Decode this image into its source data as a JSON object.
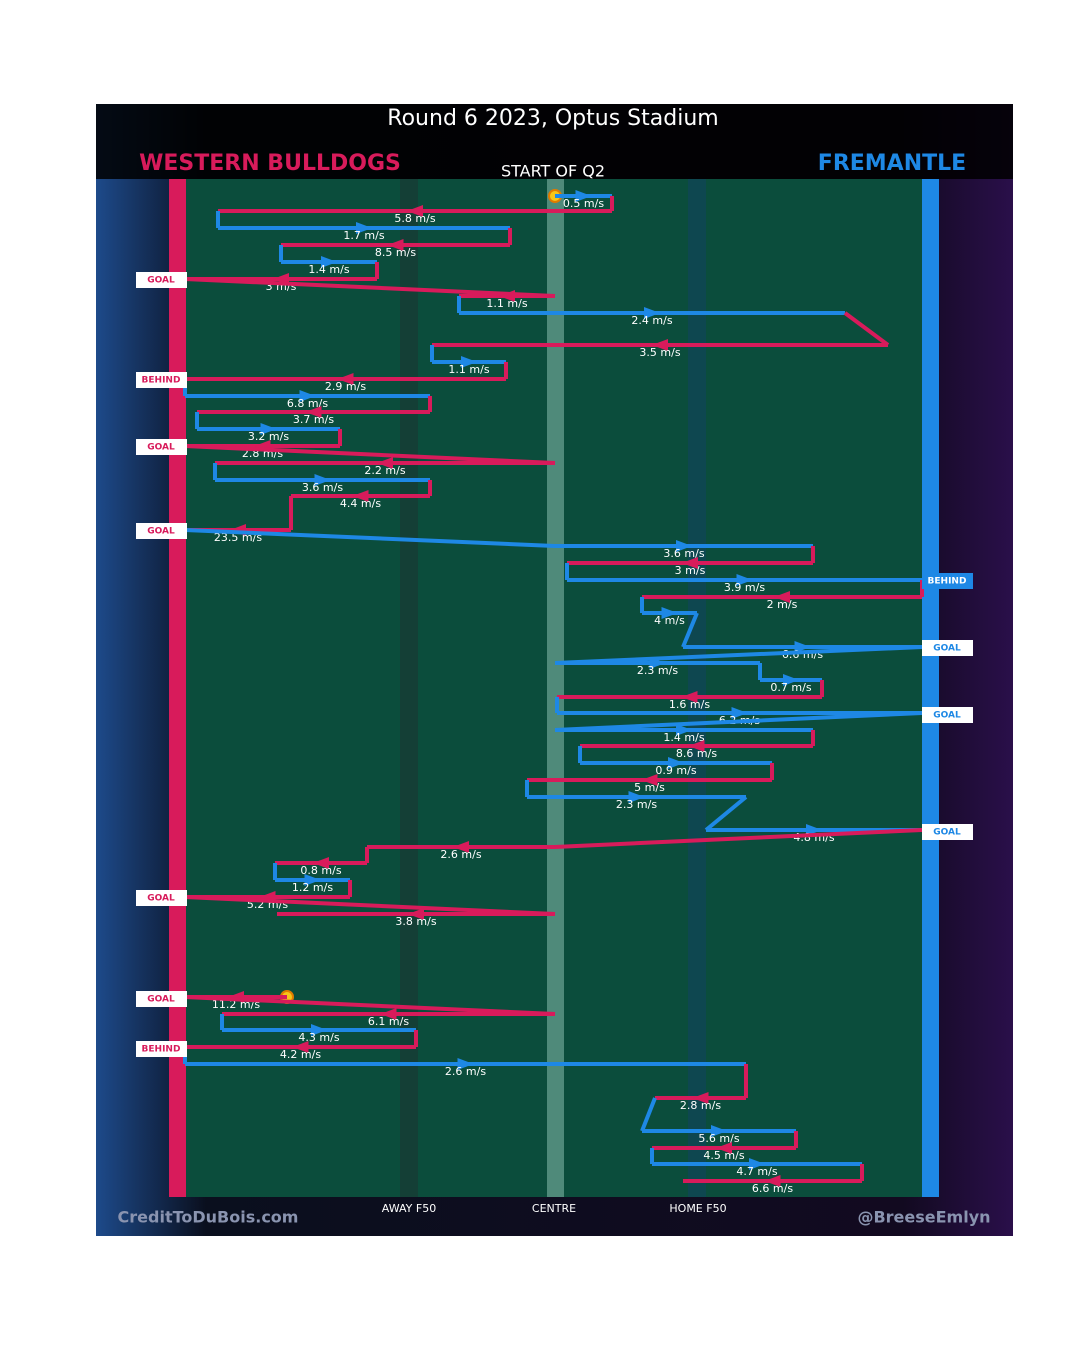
{
  "header": {
    "title": "Round 6 2023, Optus Stadium",
    "left_team": "WESTERN BULLDOGS",
    "right_team": "FREMANTLE",
    "start_label": "START OF Q2"
  },
  "colors": {
    "left": "#d81b5b",
    "right": "#1e88e5"
  },
  "possessions": [
    {
      "speed": "0.5 m/s",
      "color": "#1e88e5"
    },
    {
      "speed": "5.8 m/s",
      "color": "#d81b5b"
    },
    {
      "speed": "1.7 m/s",
      "color": "#1e88e5"
    },
    {
      "speed": "8.5 m/s",
      "color": "#d81b5b"
    },
    {
      "speed": "1.4 m/s",
      "color": "#1e88e5"
    },
    {
      "speed": "3 m/s",
      "color": "#d81b5b"
    },
    {
      "speed": "1.1 m/s",
      "color": "#d81b5b"
    },
    {
      "speed": "2.4 m/s",
      "color": "#1e88e5"
    },
    {
      "speed": "3.5 m/s",
      "color": "#d81b5b"
    },
    {
      "speed": "1.1 m/s",
      "color": "#1e88e5"
    },
    {
      "speed": "2.9 m/s",
      "color": "#d81b5b"
    },
    {
      "speed": "6.8 m/s",
      "color": "#1e88e5"
    },
    {
      "speed": "3.7 m/s",
      "color": "#d81b5b"
    },
    {
      "speed": "3.2 m/s",
      "color": "#1e88e5"
    },
    {
      "speed": "2.8 m/s",
      "color": "#d81b5b"
    },
    {
      "speed": "2.2 m/s",
      "color": "#d81b5b"
    },
    {
      "speed": "3.6 m/s",
      "color": "#1e88e5"
    },
    {
      "speed": "4.4 m/s",
      "color": "#d81b5b"
    },
    {
      "speed": "23.5 m/s",
      "color": "#d81b5b"
    },
    {
      "speed": "3.6 m/s",
      "color": "#1e88e5"
    },
    {
      "speed": "3 m/s",
      "color": "#d81b5b"
    },
    {
      "speed": "3.9 m/s",
      "color": "#1e88e5"
    },
    {
      "speed": "2 m/s",
      "color": "#d81b5b"
    },
    {
      "speed": "4 m/s",
      "color": "#1e88e5"
    },
    {
      "speed": "6.6 m/s",
      "color": "#1e88e5"
    },
    {
      "speed": "2.3 m/s",
      "color": "#1e88e5"
    },
    {
      "speed": "0.7 m/s",
      "color": "#1e88e5"
    },
    {
      "speed": "1.6 m/s",
      "color": "#d81b5b"
    },
    {
      "speed": "6.2 m/s",
      "color": "#1e88e5"
    },
    {
      "speed": "1.4 m/s",
      "color": "#1e88e5"
    },
    {
      "speed": "8.6 m/s",
      "color": "#d81b5b"
    },
    {
      "speed": "0.9 m/s",
      "color": "#1e88e5"
    },
    {
      "speed": "5 m/s",
      "color": "#d81b5b"
    },
    {
      "speed": "2.3 m/s",
      "color": "#1e88e5"
    },
    {
      "speed": "4.8 m/s",
      "color": "#1e88e5"
    },
    {
      "speed": "2.6 m/s",
      "color": "#d81b5b"
    },
    {
      "speed": "0.8 m/s",
      "color": "#d81b5b"
    },
    {
      "speed": "1.2 m/s",
      "color": "#1e88e5"
    },
    {
      "speed": "5.2 m/s",
      "color": "#d81b5b"
    },
    {
      "speed": "3.8 m/s",
      "color": "#d81b5b"
    },
    {
      "speed": "11.2 m/s",
      "color": "#d81b5b"
    },
    {
      "speed": "6.1 m/s",
      "color": "#d81b5b"
    },
    {
      "speed": "4.3 m/s",
      "color": "#1e88e5"
    },
    {
      "speed": "4.2 m/s",
      "color": "#d81b5b"
    },
    {
      "speed": "2.6 m/s",
      "color": "#1e88e5"
    },
    {
      "speed": "2.8 m/s",
      "color": "#d81b5b"
    },
    {
      "speed": "5.6 m/s",
      "color": "#1e88e5"
    },
    {
      "speed": "4.5 m/s",
      "color": "#d81b5b"
    },
    {
      "speed": "4.7 m/s",
      "color": "#1e88e5"
    },
    {
      "speed": "6.6 m/s",
      "color": "#d81b5b"
    }
  ],
  "outcomes": [
    {
      "label": "GOAL",
      "side": "left"
    },
    {
      "label": "BEHIND",
      "side": "left"
    },
    {
      "label": "GOAL",
      "side": "left"
    },
    {
      "label": "GOAL",
      "side": "left"
    },
    {
      "label": "BEHIND",
      "side": "right"
    },
    {
      "label": "GOAL",
      "side": "right"
    },
    {
      "label": "GOAL",
      "side": "right"
    },
    {
      "label": "GOAL",
      "side": "right"
    },
    {
      "label": "GOAL",
      "side": "left"
    },
    {
      "label": "GOAL",
      "side": "left"
    },
    {
      "label": "BEHIND",
      "side": "left"
    }
  ],
  "axis_labels": [
    "AWAY F50",
    "CENTRE",
    "HOME F50"
  ],
  "footer": {
    "left": "CreditToDuBois.com",
    "right": "@BreeseEmlyn"
  }
}
